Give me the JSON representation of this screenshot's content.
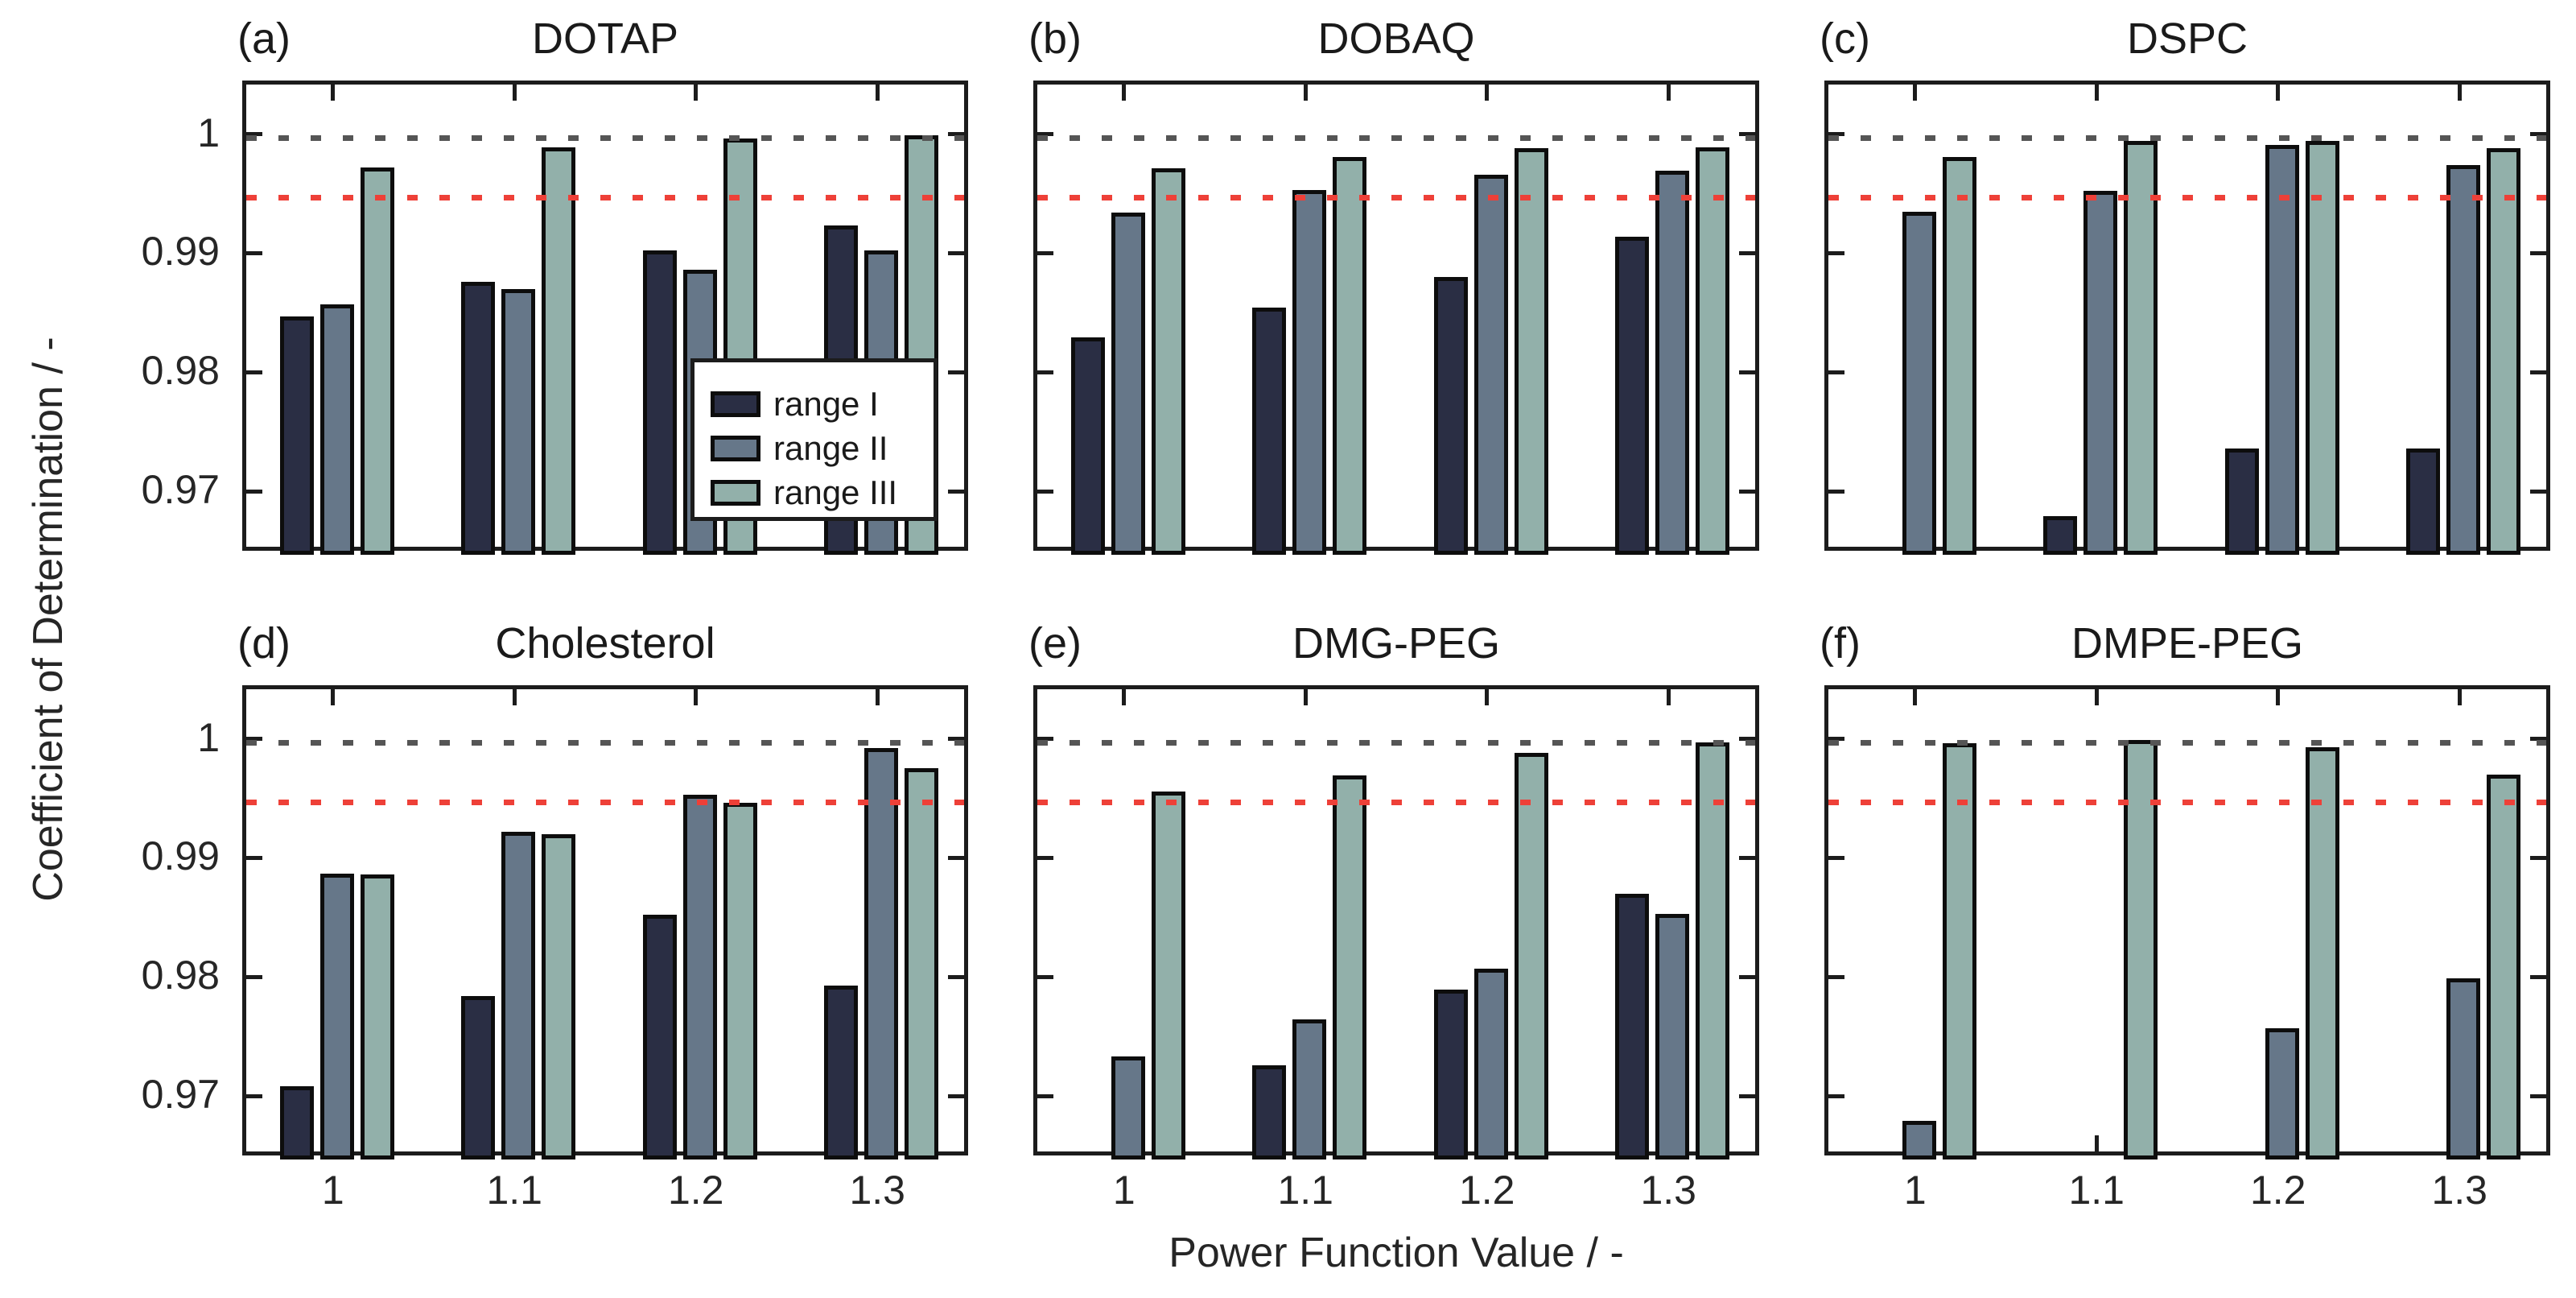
{
  "figure": {
    "xlabel": "Power Function Value / -",
    "ylabel": "Coefficient of Determination / -",
    "background_color": "#ffffff",
    "axis_color": "#1c1c1c",
    "text_color": "#262626",
    "bar_edge_color": "#0d0d0d",
    "grid": "off",
    "ref_lines": [
      {
        "name": "unity-line",
        "value": 1.0,
        "color": "#555555",
        "style": "dotted"
      },
      {
        "name": "threshold-line",
        "value": 0.995,
        "color": "#ee4038",
        "style": "dotted"
      }
    ],
    "y_ticks": [
      {
        "value": 1.0,
        "label": "1"
      },
      {
        "value": 0.99,
        "label": "0.99"
      },
      {
        "value": 0.98,
        "label": "0.98"
      },
      {
        "value": 0.97,
        "label": "0.97"
      }
    ],
    "x_tick_labels": [
      "1",
      "1.1",
      "1.2",
      "1.3"
    ],
    "ylim": [
      0.965,
      1.0045
    ]
  },
  "legend": {
    "position": "inside panel (a), lower right",
    "items": [
      {
        "label": "range I",
        "color": "#2a2e44"
      },
      {
        "label": "range II",
        "color": "#667789"
      },
      {
        "label": "range III",
        "color": "#92b0aa"
      }
    ]
  },
  "chart_data": [
    {
      "type": "bar",
      "panel_label": "(a)",
      "title": "DOTAP",
      "categories": [
        "1",
        "1.1",
        "1.2",
        "1.3"
      ],
      "xlabel": "Power Function Value / -",
      "ylabel": "Coefficient of Determination / -",
      "ylim": [
        0.965,
        1.0045
      ],
      "series": [
        {
          "name": "range I",
          "values": [
            0.9847,
            0.9876,
            0.9902,
            0.9923
          ]
        },
        {
          "name": "range II",
          "values": [
            0.9857,
            0.987,
            0.9886,
            0.9902
          ]
        },
        {
          "name": "range III",
          "values": [
            0.9972,
            0.9989,
            0.9996,
            0.9999
          ]
        }
      ]
    },
    {
      "type": "bar",
      "panel_label": "(b)",
      "title": "DOBAQ",
      "categories": [
        "1",
        "1.1",
        "1.2",
        "1.3"
      ],
      "ylim": [
        0.965,
        1.0045
      ],
      "series": [
        {
          "name": "range I",
          "values": [
            0.9829,
            0.9854,
            0.988,
            0.9914
          ]
        },
        {
          "name": "range II",
          "values": [
            0.9934,
            0.9953,
            0.9966,
            0.9969
          ]
        },
        {
          "name": "range III",
          "values": [
            0.9971,
            0.9981,
            0.9988,
            0.9989
          ]
        }
      ]
    },
    {
      "type": "bar",
      "panel_label": "(c)",
      "title": "DSPC",
      "categories": [
        "1",
        "1.1",
        "1.2",
        "1.3"
      ],
      "ylim": [
        0.965,
        1.0045
      ],
      "series": [
        {
          "name": "range I",
          "values": [
            null,
            0.9679,
            0.9736,
            0.9736
          ]
        },
        {
          "name": "range II",
          "values": [
            0.9935,
            0.9952,
            0.9991,
            0.9974
          ]
        },
        {
          "name": "range III",
          "values": [
            0.9981,
            0.9994,
            0.9994,
            0.9988
          ]
        }
      ]
    },
    {
      "type": "bar",
      "panel_label": "(d)",
      "title": "Cholesterol",
      "categories": [
        "1",
        "1.1",
        "1.2",
        "1.3"
      ],
      "ylim": [
        0.965,
        1.0045
      ],
      "series": [
        {
          "name": "range I",
          "values": [
            0.9708,
            0.9784,
            0.9852,
            0.9793
          ]
        },
        {
          "name": "range II",
          "values": [
            0.9887,
            0.9922,
            0.9953,
            0.9992
          ]
        },
        {
          "name": "range III",
          "values": [
            0.9886,
            0.992,
            0.9946,
            0.9975
          ]
        }
      ]
    },
    {
      "type": "bar",
      "panel_label": "(e)",
      "title": "DMG-PEG",
      "categories": [
        "1",
        "1.1",
        "1.2",
        "1.3"
      ],
      "ylim": [
        0.965,
        1.0045
      ],
      "series": [
        {
          "name": "range I",
          "values": [
            null,
            0.9726,
            0.9789,
            0.987
          ]
        },
        {
          "name": "range II",
          "values": [
            0.9733,
            0.9764,
            0.9807,
            0.9853
          ]
        },
        {
          "name": "range III",
          "values": [
            0.9956,
            0.9969,
            0.9988,
            0.9997
          ]
        }
      ]
    },
    {
      "type": "bar",
      "panel_label": "(f)",
      "title": "DMPE-PEG",
      "categories": [
        "1",
        "1.1",
        "1.2",
        "1.3"
      ],
      "ylim": [
        0.965,
        1.0045
      ],
      "series": [
        {
          "name": "range I",
          "values": [
            null,
            null,
            null,
            null
          ]
        },
        {
          "name": "range II",
          "values": [
            0.9679,
            null,
            0.9757,
            0.9799
          ]
        },
        {
          "name": "range III",
          "values": [
            0.9996,
            0.9999,
            0.9993,
            0.997
          ]
        }
      ]
    }
  ]
}
